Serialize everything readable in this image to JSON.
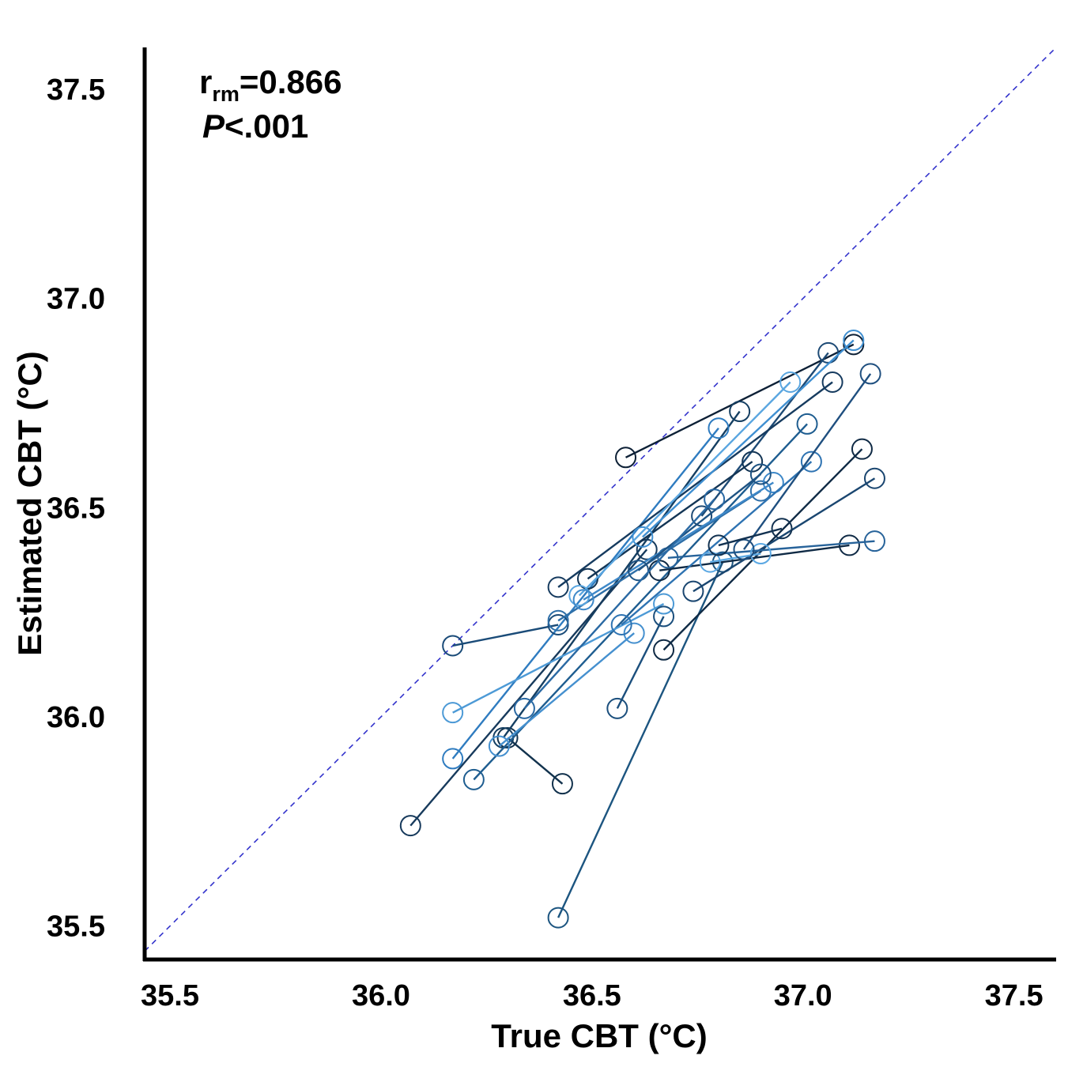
{
  "chart_data": {
    "type": "scatter",
    "xlabel": "True CBT (°C)",
    "ylabel": "Estimated CBT (°C)",
    "xlim": [
      35.44,
      37.6
    ],
    "ylim": [
      35.42,
      37.6
    ],
    "xticks": [
      "35.5",
      "36.0",
      "36.5",
      "37.0",
      "37.5"
    ],
    "yticks": [
      "35.5",
      "36.0",
      "36.5",
      "37.0",
      "37.5"
    ],
    "reference_line": "identity",
    "annotations": {
      "r_symbol": "r",
      "r_subscript": "rm",
      "r_value": "=0.866",
      "p_symbol": "P",
      "p_value": "<.001"
    },
    "colors": {
      "reference_line": "#3333cc",
      "axis": "#000000"
    },
    "series": [
      {
        "color": "#0d2036",
        "points": [
          [
            36.58,
            36.62
          ],
          [
            37.12,
            36.89
          ]
        ]
      },
      {
        "color": "#12324d",
        "points": [
          [
            36.43,
            35.84
          ],
          [
            36.3,
            35.95
          ]
        ]
      },
      {
        "color": "#153f62",
        "points": [
          [
            36.29,
            35.95
          ],
          [
            36.85,
            36.73
          ]
        ]
      },
      {
        "color": "#1c5580",
        "points": [
          [
            36.42,
            35.52
          ],
          [
            36.81,
            36.37
          ]
        ]
      },
      {
        "color": "#1d4a75",
        "points": [
          [
            36.76,
            36.48
          ],
          [
            37.06,
            36.87
          ]
        ]
      },
      {
        "color": "#173a5c",
        "points": [
          [
            36.07,
            35.74
          ],
          [
            36.63,
            36.4
          ]
        ]
      },
      {
        "color": "#1e5d90",
        "points": [
          [
            36.22,
            35.85
          ],
          [
            37.01,
            36.7
          ]
        ]
      },
      {
        "color": "#2f7cc0",
        "points": [
          [
            36.17,
            35.9
          ],
          [
            36.8,
            36.69
          ]
        ]
      },
      {
        "color": "#4d9ad6",
        "points": [
          [
            36.17,
            36.01
          ],
          [
            36.67,
            36.27
          ]
        ]
      },
      {
        "color": "#163b5f",
        "points": [
          [
            36.42,
            36.31
          ],
          [
            37.07,
            36.8
          ]
        ]
      },
      {
        "color": "#1a4b78",
        "points": [
          [
            36.17,
            36.17
          ],
          [
            36.42,
            36.22
          ]
        ]
      },
      {
        "color": "#2e6fa8",
        "points": [
          [
            36.42,
            36.23
          ],
          [
            36.9,
            36.54
          ]
        ]
      },
      {
        "color": "#133555",
        "points": [
          [
            36.49,
            36.33
          ],
          [
            36.88,
            36.61
          ]
        ]
      },
      {
        "color": "#1b4f7d",
        "points": [
          [
            36.56,
            36.02
          ],
          [
            36.67,
            36.24
          ]
        ]
      },
      {
        "color": "#0f2a45",
        "points": [
          [
            36.66,
            36.35
          ],
          [
            37.11,
            36.41
          ]
        ]
      },
      {
        "color": "#0f2a45",
        "points": [
          [
            36.67,
            36.16
          ],
          [
            37.14,
            36.64
          ]
        ]
      },
      {
        "color": "#1a4670",
        "points": [
          [
            36.74,
            36.3
          ],
          [
            37.17,
            36.57
          ]
        ]
      },
      {
        "color": "#27639a",
        "points": [
          [
            36.68,
            36.38
          ],
          [
            37.17,
            36.42
          ]
        ]
      },
      {
        "color": "#3f8fd1",
        "points": [
          [
            36.62,
            36.43
          ],
          [
            37.12,
            36.9
          ]
        ]
      },
      {
        "color": "#5aa6e0",
        "points": [
          [
            36.47,
            36.29
          ],
          [
            36.97,
            36.8
          ]
        ]
      },
      {
        "color": "#3e88c8",
        "points": [
          [
            36.48,
            36.28
          ],
          [
            36.93,
            36.56
          ]
        ]
      },
      {
        "color": "#1e5383",
        "points": [
          [
            36.61,
            36.35
          ],
          [
            36.9,
            36.58
          ]
        ]
      },
      {
        "color": "#2a69a3",
        "points": [
          [
            36.34,
            36.02
          ],
          [
            36.79,
            36.52
          ]
        ]
      },
      {
        "color": "#4590cf",
        "points": [
          [
            36.28,
            35.93
          ],
          [
            36.6,
            36.2
          ]
        ]
      },
      {
        "color": "#2e73b2",
        "points": [
          [
            36.57,
            36.22
          ],
          [
            37.02,
            36.61
          ]
        ]
      },
      {
        "color": "#5ba8e3",
        "points": [
          [
            36.78,
            36.37
          ],
          [
            36.9,
            36.39
          ]
        ]
      },
      {
        "color": "#1f4f7f",
        "points": [
          [
            36.86,
            36.4
          ],
          [
            37.16,
            36.82
          ]
        ]
      },
      {
        "color": "#123150",
        "points": [
          [
            36.8,
            36.41
          ],
          [
            36.95,
            36.45
          ]
        ]
      }
    ]
  }
}
